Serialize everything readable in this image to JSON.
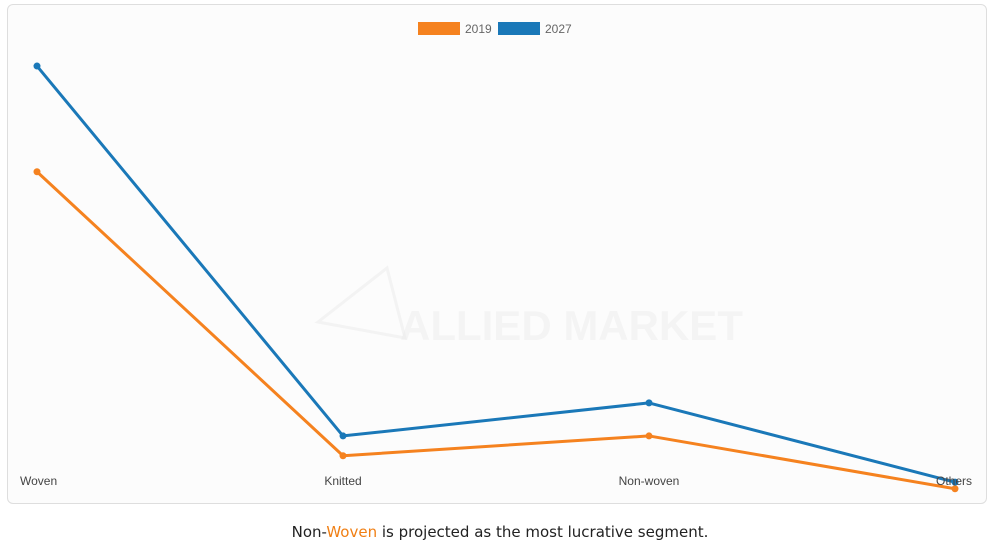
{
  "chart_data": {
    "type": "line",
    "categories": [
      "Woven",
      "Knitted",
      "Non-woven",
      "Others"
    ],
    "series": [
      {
        "name": "2019",
        "color": "#f5821f",
        "values": [
          62,
          19,
          22,
          14
        ]
      },
      {
        "name": "2027",
        "color": "#1a78b8",
        "values": [
          78,
          22,
          27,
          15
        ]
      }
    ],
    "ylim": [
      7,
      88
    ],
    "grid": false,
    "legend_position": "top-center",
    "watermark": "ALLIED MARKET"
  },
  "caption": {
    "prefix": "Non-",
    "highlight": "Woven",
    "suffix": " is projected as the most lucrative segment."
  }
}
